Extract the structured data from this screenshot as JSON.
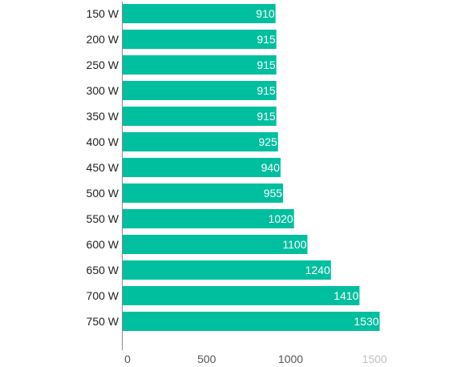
{
  "chart_data": {
    "type": "bar",
    "orientation": "horizontal",
    "categories": [
      "150 W",
      "200 W",
      "250 W",
      "300 W",
      "350 W",
      "400 W",
      "450 W",
      "500 W",
      "550 W",
      "600 W",
      "650 W",
      "700 W",
      "750 W"
    ],
    "values": [
      910,
      915,
      915,
      915,
      915,
      925,
      940,
      955,
      1020,
      1100,
      1240,
      1410,
      1530
    ],
    "data_labels": [
      "910",
      "915",
      "915",
      "915",
      "915",
      "925",
      "940",
      "955",
      "1020",
      "1100",
      "1240",
      "1410",
      "1530"
    ],
    "xlim": [
      0,
      1530
    ],
    "x_ticks": [
      0,
      500,
      1000,
      1500
    ],
    "x_tick_labels": [
      "0",
      "500",
      "1000",
      "1500"
    ],
    "title": "",
    "xlabel": "",
    "ylabel": "",
    "grid": false,
    "legend": "none",
    "colors": {
      "bar": "#00bf9f",
      "axis": "#888888",
      "tick_label": "#555555",
      "tick_label_faded": "#c0c0c0"
    }
  }
}
